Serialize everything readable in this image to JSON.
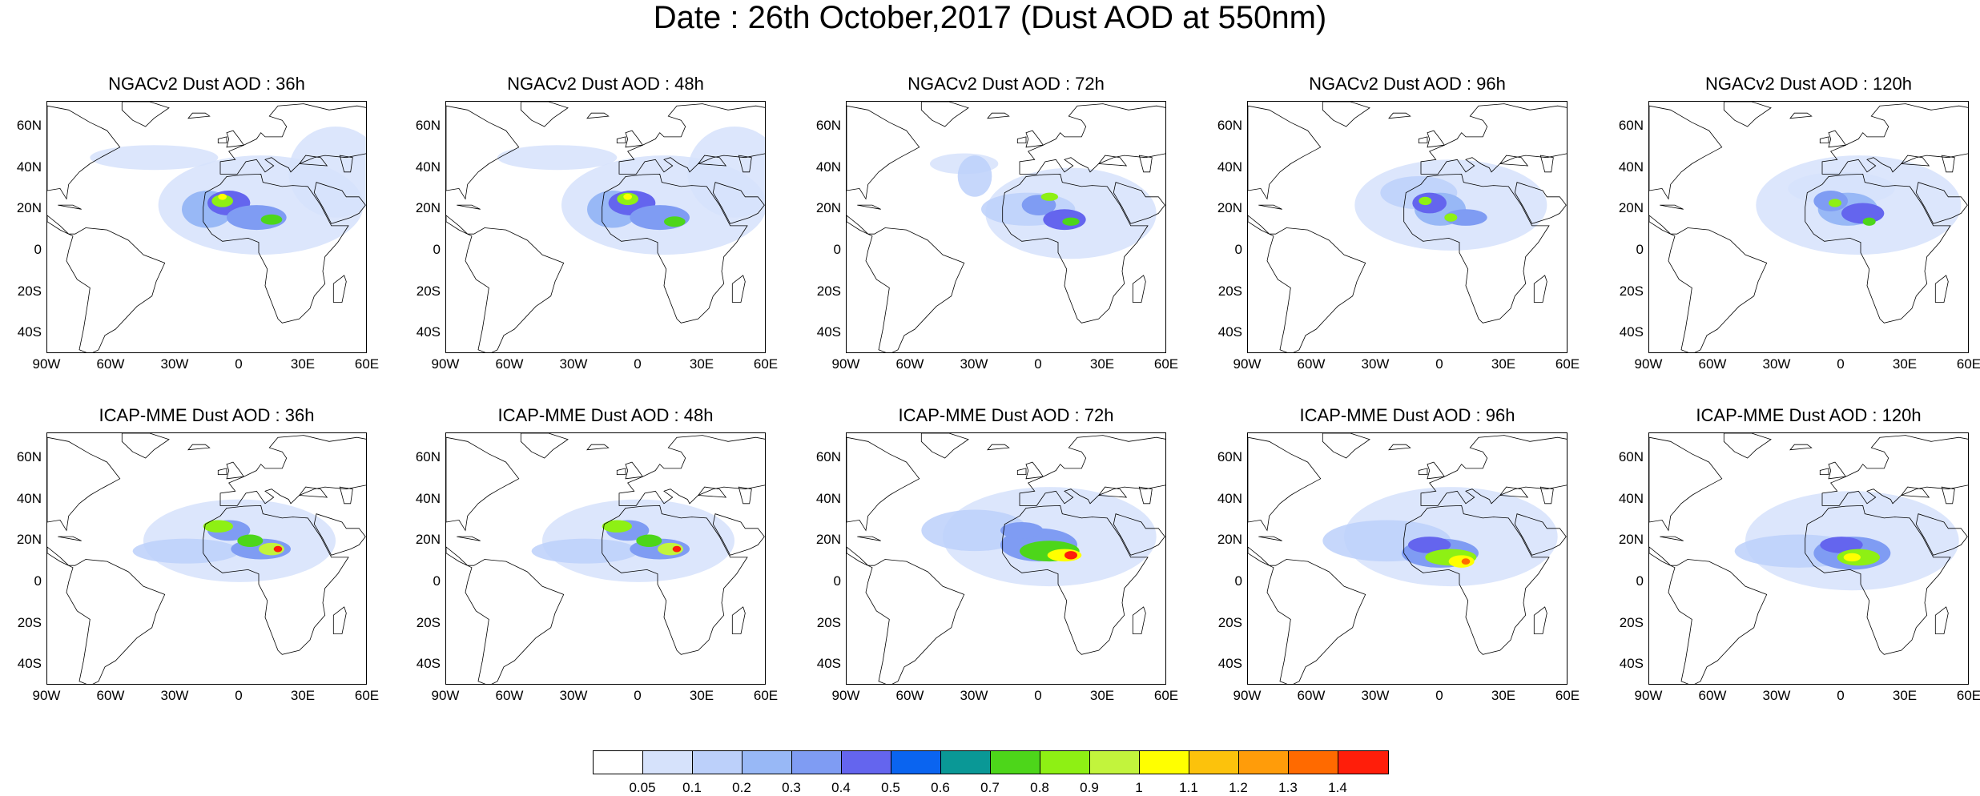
{
  "title": "Date : 26th October,2017 (Dust AOD at 550nm)",
  "panels": [
    {
      "title": "NGACv2 Dust AOD : 36h"
    },
    {
      "title": "NGACv2 Dust AOD : 48h"
    },
    {
      "title": "NGACv2 Dust AOD : 72h"
    },
    {
      "title": "NGACv2 Dust AOD : 96h"
    },
    {
      "title": "NGACv2 Dust AOD : 120h"
    },
    {
      "title": "ICAP-MME Dust AOD : 36h"
    },
    {
      "title": "ICAP-MME Dust AOD : 48h"
    },
    {
      "title": "ICAP-MME Dust AOD : 72h"
    },
    {
      "title": "ICAP-MME Dust AOD : 96h"
    },
    {
      "title": "ICAP-MME Dust AOD : 120h"
    }
  ],
  "lat_ticks": [
    "60N",
    "40N",
    "20N",
    "0",
    "20S",
    "40S"
  ],
  "lon_ticks": [
    "90W",
    "60W",
    "30W",
    "0",
    "30E",
    "60E"
  ],
  "colorbar": {
    "labels": [
      "0.05",
      "0.1",
      "0.2",
      "0.3",
      "0.4",
      "0.5",
      "0.6",
      "0.7",
      "0.8",
      "0.9",
      "1",
      "1.1",
      "1.2",
      "1.3",
      "1.4"
    ],
    "colors": [
      "#ffffff",
      "#d6e2fb",
      "#bcd0fa",
      "#98b8f6",
      "#7f9cf3",
      "#6465ee",
      "#0a64f0",
      "#0a9896",
      "#4dd61a",
      "#8ef014",
      "#c2f43c",
      "#ffff00",
      "#fcc20c",
      "#ff9c0a",
      "#ff6a00",
      "#ff1e0a"
    ]
  }
}
